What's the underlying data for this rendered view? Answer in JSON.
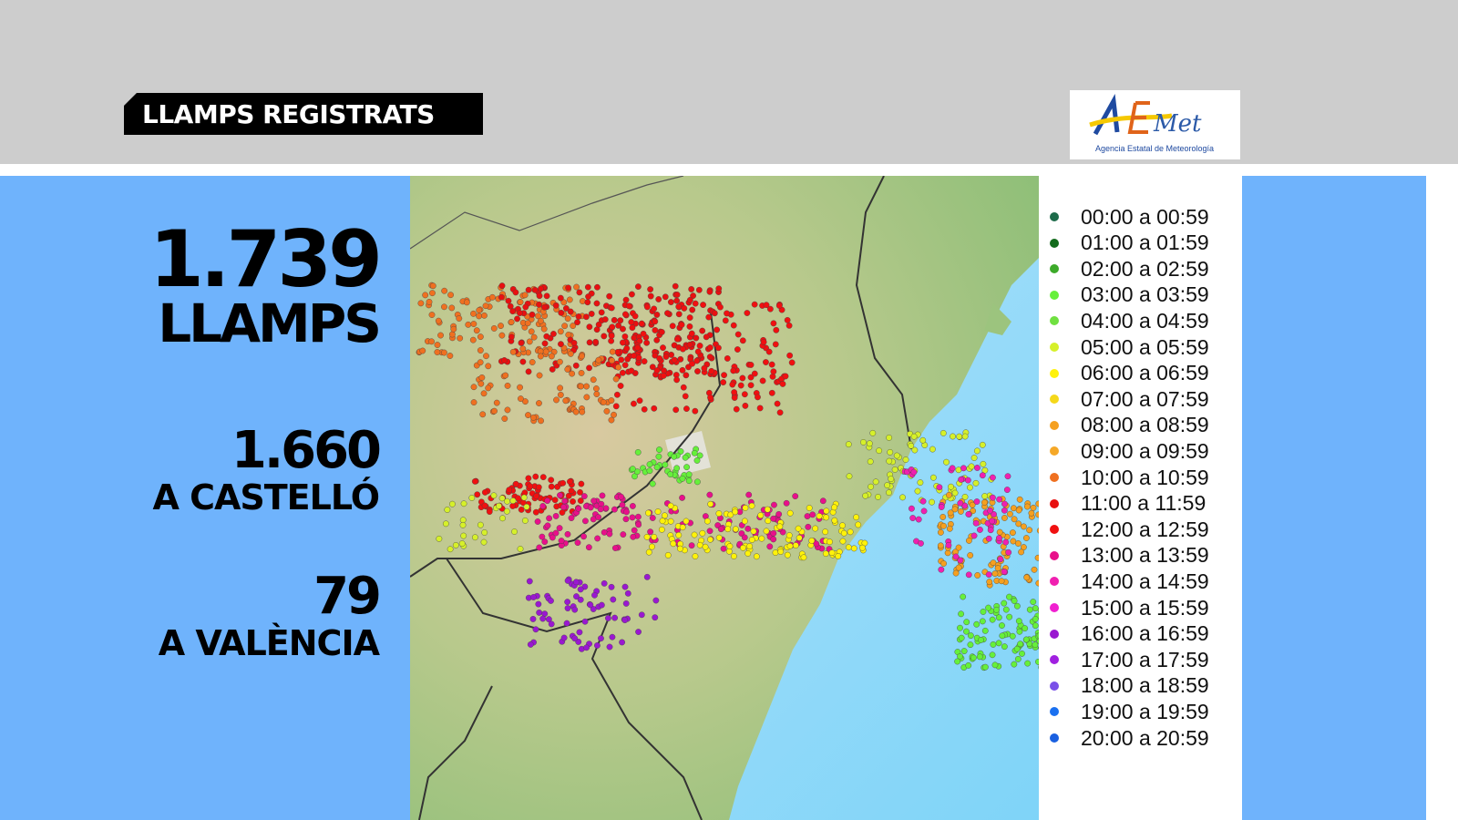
{
  "header": {
    "title": "LLAMPS REGISTRATS"
  },
  "logo": {
    "text": "AEMet",
    "subtitle": "Agencia Estatal de Meteorología"
  },
  "stats": {
    "total_value": "1.739",
    "total_label": "LLAMPS",
    "castello_value": "1.660",
    "castello_label": "A CASTELLÓ",
    "valencia_value": "79",
    "valencia_label": "A VALÈNCIA"
  },
  "legend": [
    {
      "label": "00:00 a 00:59",
      "color": "#1d6b4a"
    },
    {
      "label": "01:00 a 01:59",
      "color": "#136b1c"
    },
    {
      "label": "02:00 a 02:59",
      "color": "#3daa2a"
    },
    {
      "label": "03:00 a 03:59",
      "color": "#66f03a"
    },
    {
      "label": "04:00 a 04:59",
      "color": "#70e040"
    },
    {
      "label": "05:00 a 05:59",
      "color": "#d6f02a"
    },
    {
      "label": "06:00 a 06:59",
      "color": "#fff20a"
    },
    {
      "label": "07:00 a 07:59",
      "color": "#f5d81a"
    },
    {
      "label": "08:00 a 08:59",
      "color": "#f5a020"
    },
    {
      "label": "09:00 a 09:59",
      "color": "#f5a828"
    },
    {
      "label": "10:00 a 10:59",
      "color": "#ef7020"
    },
    {
      "label": "11:00 a 11:59",
      "color": "#e81010"
    },
    {
      "label": "12:00 a 12:59",
      "color": "#f01010"
    },
    {
      "label": "13:00 a 13:59",
      "color": "#e8108a"
    },
    {
      "label": "14:00 a 14:59",
      "color": "#f020b0"
    },
    {
      "label": "15:00 a 15:59",
      "color": "#f020d0"
    },
    {
      "label": "16:00 a 16:59",
      "color": "#9a18d0"
    },
    {
      "label": "17:00 a 17:59",
      "color": "#a020e0"
    },
    {
      "label": "18:00 a 18:59",
      "color": "#7a50e8"
    },
    {
      "label": "19:00 a 19:59",
      "color": "#1a70f0"
    },
    {
      "label": "20:00 a 20:59",
      "color": "#1a60e0"
    }
  ]
}
